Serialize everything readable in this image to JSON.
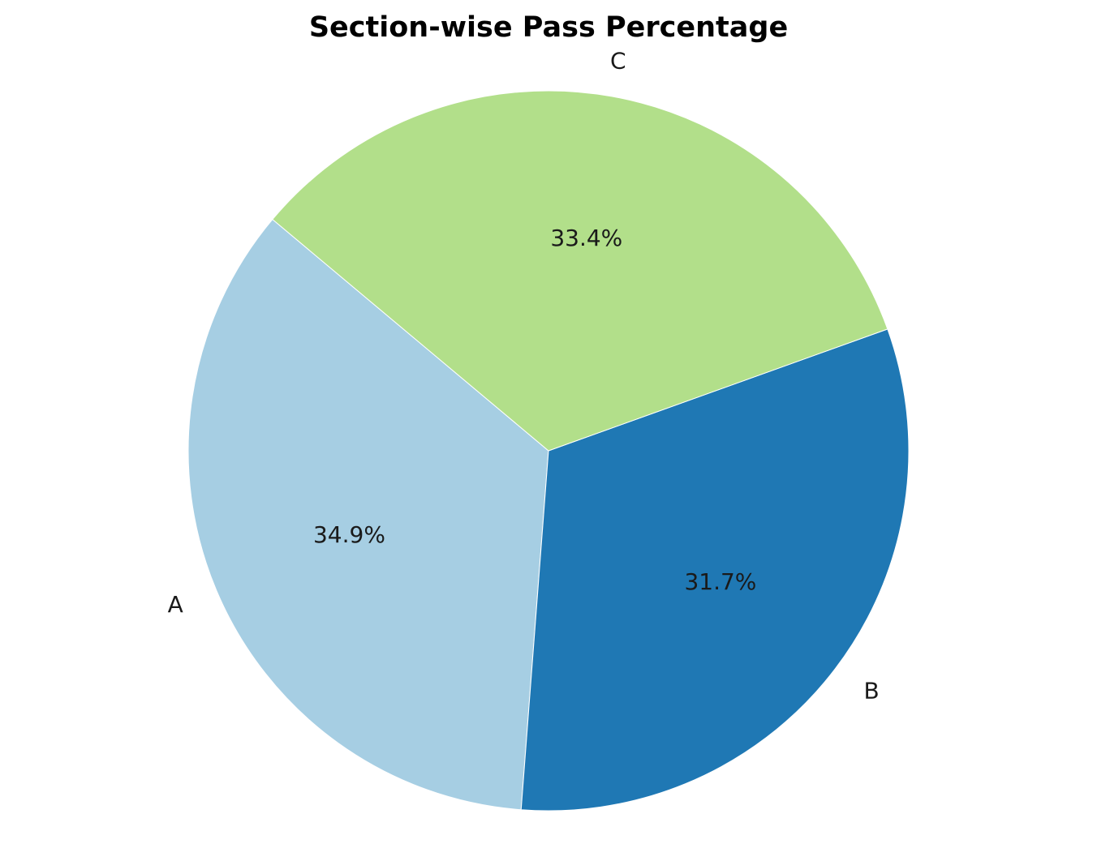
{
  "chart_data": {
    "type": "pie",
    "title": "Section-wise Pass Percentage",
    "categories": [
      "A",
      "B",
      "C"
    ],
    "values": [
      34.9,
      31.7,
      33.4
    ],
    "value_labels": [
      "34.9%",
      "31.7%",
      "33.4%"
    ],
    "colors": [
      "#a6cee3",
      "#1f78b4",
      "#b2df8a"
    ],
    "start_angle_deg": 140,
    "direction": "counterclockwise"
  }
}
